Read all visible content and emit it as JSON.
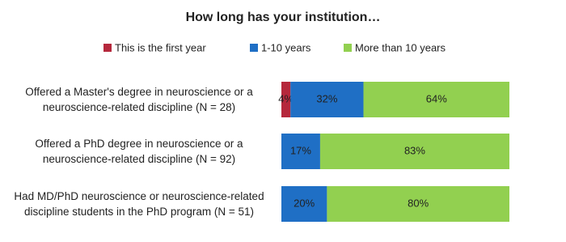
{
  "chart_data": {
    "type": "stacked-bar-horizontal",
    "title": "How long has your institution…",
    "categories": [
      "Offered a Master's degree in neuroscience or a neuroscience-related discipline (N = 28)",
      "Offered a PhD degree in neuroscience or a neuroscience-related discipline (N = 92)",
      "Had MD/PhD neuroscience or neuroscience-related discipline students in the PhD program (N = 51)"
    ],
    "series": [
      {
        "name": "This is the first year",
        "color": "#b5283c",
        "values": [
          4,
          null,
          null
        ],
        "value_labels": [
          "4%",
          null,
          null
        ]
      },
      {
        "name": "1-10 years",
        "color": "#1f6fc5",
        "values": [
          32,
          17,
          20
        ],
        "value_labels": [
          "32%",
          "17%",
          "20%"
        ]
      },
      {
        "name": "More than 10 years",
        "color": "#92d050",
        "values": [
          64,
          83,
          80
        ],
        "value_labels": [
          "64%",
          "83%",
          "80%"
        ]
      }
    ],
    "legend": "top"
  }
}
